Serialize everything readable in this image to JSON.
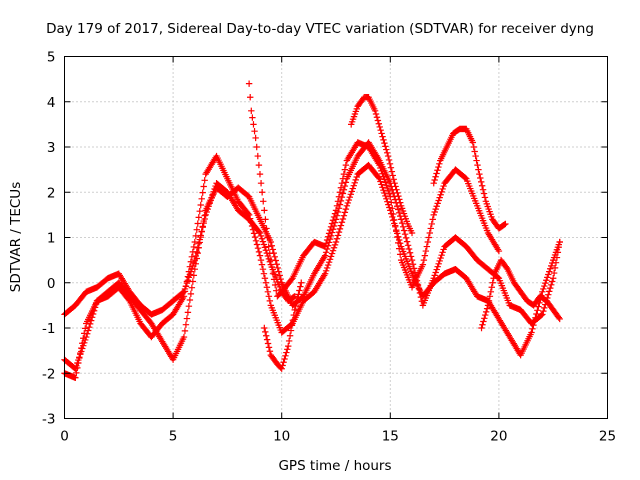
{
  "chart_data": {
    "type": "scatter",
    "title": "Day 179 of 2017, Sidereal Day-to-day VTEC variation (SDTVAR) for receiver dyng",
    "xlabel": "GPS time / hours",
    "ylabel": "SDTVAR / TECUs",
    "xlim": [
      0,
      25
    ],
    "ylim": [
      -3,
      5
    ],
    "xticks": [
      0,
      5,
      10,
      15,
      20,
      25
    ],
    "yticks": [
      -3,
      -2,
      -1,
      0,
      1,
      2,
      3,
      4,
      5
    ],
    "xtick_labels": [
      "0",
      "5",
      "10",
      "15",
      "20",
      "25"
    ],
    "ytick_labels": [
      "-3",
      "-2",
      "-1",
      "0",
      "1",
      "2",
      "3",
      "4",
      "5"
    ],
    "grid": true,
    "legend": "none",
    "marker": "+",
    "marker_color": "#ff0000",
    "series": [
      {
        "name": "trace-1",
        "x": [
          0.0,
          0.5,
          1.0,
          1.5,
          2.0,
          2.5,
          3.0,
          3.5,
          4.0,
          4.5,
          5.0,
          5.5,
          6.0,
          6.5,
          7.0,
          7.5,
          8.0,
          8.5,
          9.0,
          9.5,
          10.0,
          10.5,
          11.0,
          11.5,
          12.0,
          12.5,
          13.0,
          13.5,
          14.0,
          14.5,
          15.0,
          15.5,
          16.0,
          16.5,
          17.0,
          17.5,
          18.0,
          18.5,
          19.0,
          19.5,
          20.0
        ],
        "y": [
          -0.7,
          -0.5,
          -0.2,
          -0.1,
          0.1,
          0.2,
          -0.2,
          -0.5,
          -0.7,
          -0.6,
          -0.4,
          -0.2,
          0.5,
          1.5,
          2.2,
          2.0,
          1.6,
          1.4,
          1.1,
          0.4,
          -0.2,
          0.1,
          0.6,
          0.9,
          0.8,
          1.6,
          2.7,
          3.1,
          3.0,
          2.6,
          1.9,
          0.5,
          -0.1,
          0.4,
          1.5,
          2.2,
          2.5,
          2.3,
          1.7,
          1.1,
          0.7
        ]
      },
      {
        "name": "trace-2",
        "x": [
          0.0,
          0.5,
          1.0,
          1.5,
          2.0,
          2.5,
          3.0,
          3.5,
          4.0,
          4.5,
          5.0,
          5.5,
          6.0,
          6.5,
          7.0,
          7.5,
          8.0,
          8.5,
          9.0,
          9.5,
          10.0,
          10.5,
          11.0,
          11.5,
          12.0,
          12.5,
          13.0,
          13.5,
          14.0,
          14.5,
          15.0,
          15.5,
          16.0,
          16.5,
          17.0,
          17.5,
          18.0,
          18.5,
          19.0,
          19.5,
          20.0,
          20.5,
          21.0,
          21.5,
          22.0,
          22.5,
          22.8
        ],
        "y": [
          -1.7,
          -1.9,
          -1.2,
          -0.4,
          -0.2,
          0.0,
          -0.3,
          -0.6,
          -0.9,
          -1.3,
          -1.7,
          -1.2,
          0.3,
          1.6,
          2.1,
          1.9,
          2.1,
          1.9,
          1.4,
          0.9,
          0.0,
          -0.5,
          -0.3,
          0.2,
          0.6,
          1.4,
          2.3,
          2.8,
          3.1,
          2.7,
          2.2,
          1.4,
          0.5,
          -0.5,
          0.1,
          0.8,
          1.0,
          0.8,
          0.5,
          0.3,
          0.1,
          -0.5,
          -0.6,
          -0.9,
          -0.7,
          0.1,
          0.9
        ]
      },
      {
        "name": "trace-3",
        "x": [
          0.0,
          0.5,
          1.0,
          1.5,
          2.0,
          2.5,
          3.0,
          3.5,
          4.0,
          4.5,
          5.0,
          5.5,
          6.0,
          6.5,
          7.0,
          7.5,
          8.0,
          8.5,
          9.0,
          9.5,
          10.0,
          10.5,
          11.0,
          11.5,
          12.0,
          12.5,
          13.0,
          13.5,
          14.0,
          14.5,
          15.0,
          15.5,
          16.0,
          16.5,
          17.0,
          17.5,
          18.0,
          18.5,
          19.0,
          19.5,
          20.0,
          20.5,
          21.0,
          21.5,
          22.0,
          22.5,
          22.8
        ],
        "y": [
          -2.0,
          -2.1,
          -0.9,
          -0.4,
          -0.3,
          -0.1,
          -0.4,
          -0.9,
          -1.2,
          -0.9,
          -0.7,
          -0.3,
          0.9,
          2.4,
          2.8,
          2.3,
          1.8,
          1.5,
          0.6,
          -0.5,
          -1.1,
          -0.9,
          -0.4,
          -0.2,
          0.2,
          0.9,
          1.7,
          2.4,
          2.6,
          2.3,
          1.6,
          0.8,
          0.2,
          -0.3,
          0.0,
          0.2,
          0.3,
          0.1,
          -0.3,
          -0.4,
          -0.8,
          -1.2,
          -1.6,
          -1.1,
          -0.2,
          0.5,
          0.9
        ]
      },
      {
        "name": "trace-4",
        "x": [
          8.5,
          8.6,
          8.8,
          9.0,
          9.2,
          9.4,
          9.6,
          9.8,
          10.0,
          10.3,
          10.6
        ],
        "y": [
          4.4,
          3.8,
          3.2,
          2.4,
          1.6,
          0.8,
          0.2,
          -0.3,
          -0.2,
          -0.4,
          -0.3
        ]
      },
      {
        "name": "trace-5",
        "x": [
          9.2,
          9.5,
          9.8,
          10.0,
          10.3,
          10.6,
          10.9
        ],
        "y": [
          -1.0,
          -1.6,
          -1.8,
          -1.9,
          -1.4,
          -0.6,
          0.0
        ]
      },
      {
        "name": "trace-6",
        "x": [
          13.2,
          13.5,
          13.8,
          14.0,
          14.3,
          14.6,
          14.9,
          15.2,
          15.5,
          15.8,
          16.0
        ],
        "y": [
          3.5,
          3.9,
          4.1,
          4.1,
          3.8,
          3.3,
          2.8,
          2.2,
          1.7,
          1.3,
          1.1
        ]
      },
      {
        "name": "trace-7",
        "x": [
          17.0,
          17.3,
          17.6,
          17.9,
          18.2,
          18.5,
          18.8,
          19.1,
          19.4,
          19.7,
          20.0,
          20.3
        ],
        "y": [
          2.2,
          2.7,
          3.0,
          3.3,
          3.4,
          3.4,
          3.1,
          2.4,
          1.8,
          1.4,
          1.2,
          1.3
        ]
      },
      {
        "name": "trace-8",
        "x": [
          19.2,
          19.5,
          19.8,
          20.1,
          20.4,
          20.7,
          21.0,
          21.3,
          21.6,
          21.9,
          22.2,
          22.5,
          22.8
        ],
        "y": [
          -1.0,
          -0.5,
          0.2,
          0.5,
          0.3,
          0.0,
          -0.2,
          -0.4,
          -0.5,
          -0.3,
          -0.4,
          -0.6,
          -0.8
        ]
      }
    ]
  }
}
